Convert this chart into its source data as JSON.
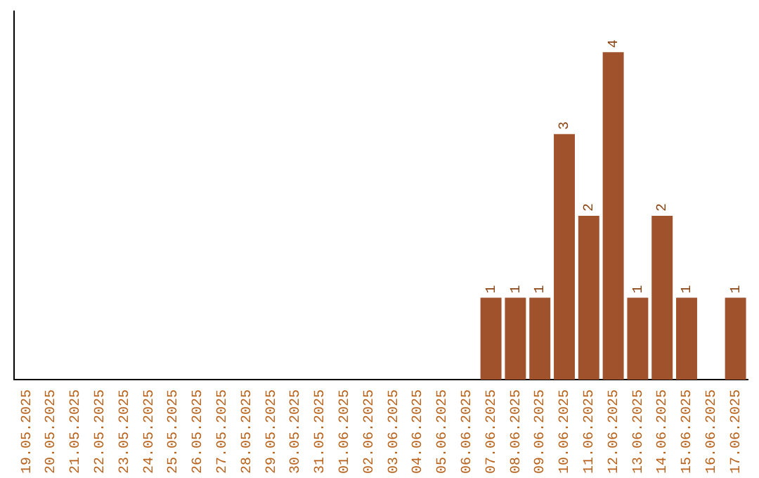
{
  "chart_data": {
    "type": "bar",
    "categories": [
      "19.05.2025",
      "20.05.2025",
      "21.05.2025",
      "22.05.2025",
      "23.05.2025",
      "24.05.2025",
      "25.05.2025",
      "26.05.2025",
      "27.05.2025",
      "28.05.2025",
      "29.05.2025",
      "30.05.2025",
      "31.05.2025",
      "01.06.2025",
      "02.06.2025",
      "03.06.2025",
      "04.06.2025",
      "05.06.2025",
      "06.06.2025",
      "07.06.2025",
      "08.06.2025",
      "09.06.2025",
      "10.06.2025",
      "11.06.2025",
      "12.06.2025",
      "13.06.2025",
      "14.06.2025",
      "15.06.2025",
      "16.06.2025",
      "17.06.2025"
    ],
    "values": [
      null,
      null,
      null,
      null,
      null,
      null,
      null,
      null,
      null,
      null,
      null,
      null,
      null,
      null,
      null,
      null,
      null,
      null,
      null,
      1,
      1,
      1,
      3,
      2,
      4,
      1,
      2,
      1,
      null,
      1
    ],
    "value_labels": [
      null,
      null,
      null,
      null,
      null,
      null,
      null,
      null,
      null,
      null,
      null,
      null,
      null,
      null,
      null,
      null,
      null,
      null,
      null,
      "1",
      "1",
      "1",
      "3",
      "2",
      "4",
      "1",
      "2",
      "1",
      null,
      "1"
    ],
    "color": "#a0522d",
    "grid": false,
    "legend": false
  }
}
